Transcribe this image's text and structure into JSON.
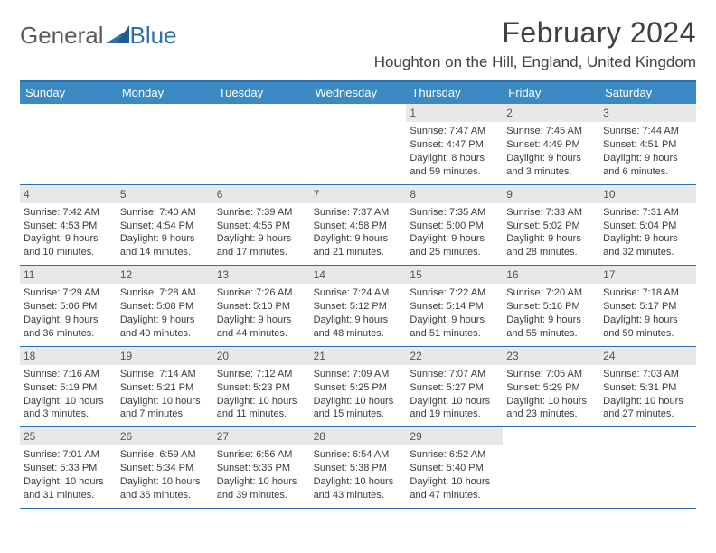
{
  "brand": {
    "part1": "General",
    "part2": "Blue",
    "tri_color": "#2d6fad",
    "text_color": "#5b5b5b"
  },
  "title": "February 2024",
  "location": "Houghton on the Hill, England, United Kingdom",
  "colors": {
    "header_bg": "#3b8ac4",
    "border": "#2d6fad",
    "daynum_bg": "#e8e8e8"
  },
  "day_names": [
    "Sunday",
    "Monday",
    "Tuesday",
    "Wednesday",
    "Thursday",
    "Friday",
    "Saturday"
  ],
  "weeks": [
    [
      {
        "empty": true
      },
      {
        "empty": true
      },
      {
        "empty": true
      },
      {
        "empty": true
      },
      {
        "n": "1",
        "sunrise": "Sunrise: 7:47 AM",
        "sunset": "Sunset: 4:47 PM",
        "daylight": "Daylight: 8 hours and 59 minutes."
      },
      {
        "n": "2",
        "sunrise": "Sunrise: 7:45 AM",
        "sunset": "Sunset: 4:49 PM",
        "daylight": "Daylight: 9 hours and 3 minutes."
      },
      {
        "n": "3",
        "sunrise": "Sunrise: 7:44 AM",
        "sunset": "Sunset: 4:51 PM",
        "daylight": "Daylight: 9 hours and 6 minutes."
      }
    ],
    [
      {
        "n": "4",
        "sunrise": "Sunrise: 7:42 AM",
        "sunset": "Sunset: 4:53 PM",
        "daylight": "Daylight: 9 hours and 10 minutes."
      },
      {
        "n": "5",
        "sunrise": "Sunrise: 7:40 AM",
        "sunset": "Sunset: 4:54 PM",
        "daylight": "Daylight: 9 hours and 14 minutes."
      },
      {
        "n": "6",
        "sunrise": "Sunrise: 7:39 AM",
        "sunset": "Sunset: 4:56 PM",
        "daylight": "Daylight: 9 hours and 17 minutes."
      },
      {
        "n": "7",
        "sunrise": "Sunrise: 7:37 AM",
        "sunset": "Sunset: 4:58 PM",
        "daylight": "Daylight: 9 hours and 21 minutes."
      },
      {
        "n": "8",
        "sunrise": "Sunrise: 7:35 AM",
        "sunset": "Sunset: 5:00 PM",
        "daylight": "Daylight: 9 hours and 25 minutes."
      },
      {
        "n": "9",
        "sunrise": "Sunrise: 7:33 AM",
        "sunset": "Sunset: 5:02 PM",
        "daylight": "Daylight: 9 hours and 28 minutes."
      },
      {
        "n": "10",
        "sunrise": "Sunrise: 7:31 AM",
        "sunset": "Sunset: 5:04 PM",
        "daylight": "Daylight: 9 hours and 32 minutes."
      }
    ],
    [
      {
        "n": "11",
        "sunrise": "Sunrise: 7:29 AM",
        "sunset": "Sunset: 5:06 PM",
        "daylight": "Daylight: 9 hours and 36 minutes."
      },
      {
        "n": "12",
        "sunrise": "Sunrise: 7:28 AM",
        "sunset": "Sunset: 5:08 PM",
        "daylight": "Daylight: 9 hours and 40 minutes."
      },
      {
        "n": "13",
        "sunrise": "Sunrise: 7:26 AM",
        "sunset": "Sunset: 5:10 PM",
        "daylight": "Daylight: 9 hours and 44 minutes."
      },
      {
        "n": "14",
        "sunrise": "Sunrise: 7:24 AM",
        "sunset": "Sunset: 5:12 PM",
        "daylight": "Daylight: 9 hours and 48 minutes."
      },
      {
        "n": "15",
        "sunrise": "Sunrise: 7:22 AM",
        "sunset": "Sunset: 5:14 PM",
        "daylight": "Daylight: 9 hours and 51 minutes."
      },
      {
        "n": "16",
        "sunrise": "Sunrise: 7:20 AM",
        "sunset": "Sunset: 5:16 PM",
        "daylight": "Daylight: 9 hours and 55 minutes."
      },
      {
        "n": "17",
        "sunrise": "Sunrise: 7:18 AM",
        "sunset": "Sunset: 5:17 PM",
        "daylight": "Daylight: 9 hours and 59 minutes."
      }
    ],
    [
      {
        "n": "18",
        "sunrise": "Sunrise: 7:16 AM",
        "sunset": "Sunset: 5:19 PM",
        "daylight": "Daylight: 10 hours and 3 minutes."
      },
      {
        "n": "19",
        "sunrise": "Sunrise: 7:14 AM",
        "sunset": "Sunset: 5:21 PM",
        "daylight": "Daylight: 10 hours and 7 minutes."
      },
      {
        "n": "20",
        "sunrise": "Sunrise: 7:12 AM",
        "sunset": "Sunset: 5:23 PM",
        "daylight": "Daylight: 10 hours and 11 minutes."
      },
      {
        "n": "21",
        "sunrise": "Sunrise: 7:09 AM",
        "sunset": "Sunset: 5:25 PM",
        "daylight": "Daylight: 10 hours and 15 minutes."
      },
      {
        "n": "22",
        "sunrise": "Sunrise: 7:07 AM",
        "sunset": "Sunset: 5:27 PM",
        "daylight": "Daylight: 10 hours and 19 minutes."
      },
      {
        "n": "23",
        "sunrise": "Sunrise: 7:05 AM",
        "sunset": "Sunset: 5:29 PM",
        "daylight": "Daylight: 10 hours and 23 minutes."
      },
      {
        "n": "24",
        "sunrise": "Sunrise: 7:03 AM",
        "sunset": "Sunset: 5:31 PM",
        "daylight": "Daylight: 10 hours and 27 minutes."
      }
    ],
    [
      {
        "n": "25",
        "sunrise": "Sunrise: 7:01 AM",
        "sunset": "Sunset: 5:33 PM",
        "daylight": "Daylight: 10 hours and 31 minutes."
      },
      {
        "n": "26",
        "sunrise": "Sunrise: 6:59 AM",
        "sunset": "Sunset: 5:34 PM",
        "daylight": "Daylight: 10 hours and 35 minutes."
      },
      {
        "n": "27",
        "sunrise": "Sunrise: 6:56 AM",
        "sunset": "Sunset: 5:36 PM",
        "daylight": "Daylight: 10 hours and 39 minutes."
      },
      {
        "n": "28",
        "sunrise": "Sunrise: 6:54 AM",
        "sunset": "Sunset: 5:38 PM",
        "daylight": "Daylight: 10 hours and 43 minutes."
      },
      {
        "n": "29",
        "sunrise": "Sunrise: 6:52 AM",
        "sunset": "Sunset: 5:40 PM",
        "daylight": "Daylight: 10 hours and 47 minutes."
      },
      {
        "empty": true
      },
      {
        "empty": true
      }
    ]
  ]
}
